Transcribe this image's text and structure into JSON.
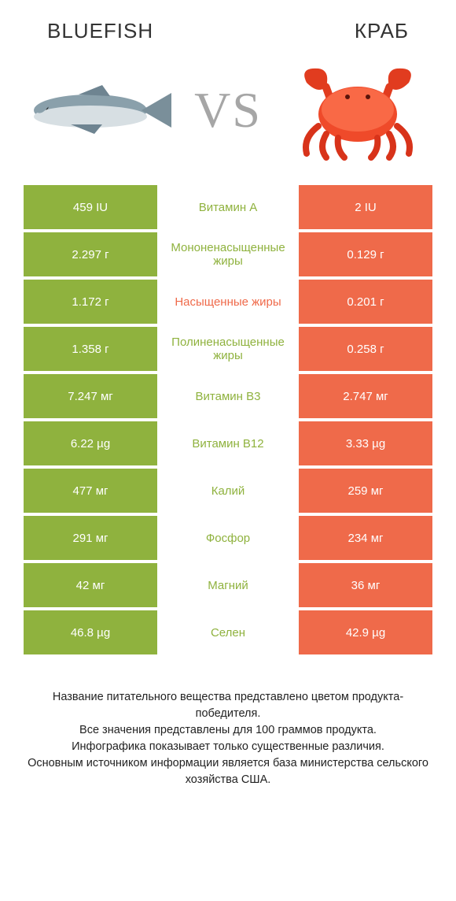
{
  "header": {
    "left_title": "Bluefish",
    "right_title": "Краб",
    "vs_label": "VS"
  },
  "colors": {
    "left_bar": "#8fb23e",
    "right_bar": "#ef6a4a",
    "center_left_text": "#8fb23e",
    "center_right_text": "#ef6a4a",
    "vs_text": "#a6a6a6"
  },
  "table": {
    "rows": [
      {
        "left": "459 IU",
        "label": "Витамин A",
        "label_color": "left",
        "right": "2 IU"
      },
      {
        "left": "2.297 г",
        "label": "Мононенасыщенные жиры",
        "label_color": "left",
        "right": "0.129 г"
      },
      {
        "left": "1.172 г",
        "label": "Насыщенные жиры",
        "label_color": "right",
        "right": "0.201 г"
      },
      {
        "left": "1.358 г",
        "label": "Полиненасыщенные жиры",
        "label_color": "left",
        "right": "0.258 г"
      },
      {
        "left": "7.247 мг",
        "label": "Витамин B3",
        "label_color": "left",
        "right": "2.747 мг"
      },
      {
        "left": "6.22 µg",
        "label": "Витамин B12",
        "label_color": "left",
        "right": "3.33 µg"
      },
      {
        "left": "477 мг",
        "label": "Калий",
        "label_color": "left",
        "right": "259 мг"
      },
      {
        "left": "291 мг",
        "label": "Фосфор",
        "label_color": "left",
        "right": "234 мг"
      },
      {
        "left": "42 мг",
        "label": "Магний",
        "label_color": "left",
        "right": "36 мг"
      },
      {
        "left": "46.8 µg",
        "label": "Селен",
        "label_color": "left",
        "right": "42.9 µg"
      }
    ]
  },
  "footnote": {
    "line1": "Название питательного вещества представлено цветом продукта-победителя.",
    "line2": "Все значения представлены для 100 граммов продукта.",
    "line3": "Инфографика показывает только существенные различия.",
    "line4": "Основным источником информации является база министерства сельского хозяйства США."
  }
}
